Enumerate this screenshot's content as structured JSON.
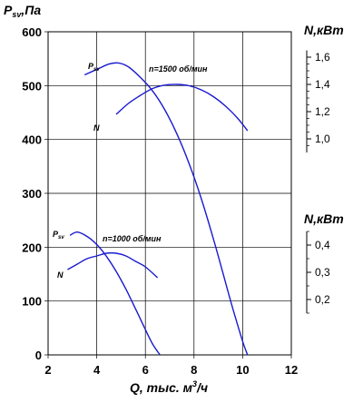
{
  "chart_data": {
    "type": "line",
    "y_title": "P",
    "y_title_sub": "sv",
    "y_title_suffix": ",Па",
    "x_title": "Q, тыс. м",
    "x_title_sup": "3",
    "x_title_suffix": "/ч",
    "right_title_top": "N,кВт",
    "right_title_bottom": "N,кВт",
    "xlim": [
      2,
      12
    ],
    "ylim": [
      0,
      600
    ],
    "x_ticks": [
      "2",
      "4",
      "6",
      "8",
      "10",
      "12"
    ],
    "y_ticks": [
      "0",
      "100",
      "200",
      "300",
      "400",
      "500",
      "600"
    ],
    "right_ticks_top": [
      {
        "label": "1,0",
        "value": 1.0
      },
      {
        "label": "1,2",
        "value": 1.2
      },
      {
        "label": "1,4",
        "value": 1.4
      },
      {
        "label": "1,6",
        "value": 1.6
      }
    ],
    "right_ticks_bottom": [
      {
        "label": "0,2",
        "value": 0.2
      },
      {
        "label": "0,3",
        "value": 0.3
      },
      {
        "label": "0,4",
        "value": 0.4
      }
    ],
    "right_axis_top_range": [
      0.9,
      1.65
    ],
    "right_axis_bottom_range": [
      0.15,
      0.45
    ],
    "annotations": {
      "n1500": "n=1500 об/мин",
      "n1000": "n=1000 об/мин",
      "psv_label_main": "P",
      "psv_label_sub": "sv",
      "n_label": "N"
    },
    "grid": true,
    "series": [
      {
        "key": "psv_1500",
        "x": [
          3.5,
          4.0,
          4.5,
          4.9,
          5.3,
          5.8,
          6.3,
          6.8,
          7.3,
          7.8,
          8.3,
          8.8,
          9.2,
          9.6,
          10.0,
          10.2
        ],
        "y": [
          520,
          530,
          540,
          542,
          535,
          515,
          490,
          455,
          410,
          355,
          290,
          215,
          150,
          85,
          25,
          0
        ]
      },
      {
        "key": "n_1500",
        "axis": "right_top",
        "x": [
          4.8,
          5.3,
          5.8,
          6.3,
          6.8,
          7.3,
          7.8,
          8.3,
          8.8,
          9.3,
          9.8,
          10.2
        ],
        "y": [
          1.18,
          1.26,
          1.32,
          1.37,
          1.395,
          1.4,
          1.39,
          1.36,
          1.31,
          1.24,
          1.15,
          1.06
        ]
      },
      {
        "key": "psv_1000",
        "x": [
          2.9,
          3.2,
          3.6,
          4.0,
          4.4,
          4.8,
          5.2,
          5.6,
          6.0,
          6.3,
          6.6
        ],
        "y": [
          222,
          228,
          220,
          205,
          183,
          155,
          122,
          85,
          47,
          20,
          0
        ]
      },
      {
        "key": "n_1000",
        "axis": "right_bottom",
        "x": [
          2.8,
          3.2,
          3.6,
          4.0,
          4.4,
          4.8,
          5.2,
          5.6,
          6.0,
          6.5
        ],
        "y": [
          0.31,
          0.33,
          0.35,
          0.36,
          0.37,
          0.37,
          0.36,
          0.34,
          0.32,
          0.28
        ]
      }
    ]
  }
}
